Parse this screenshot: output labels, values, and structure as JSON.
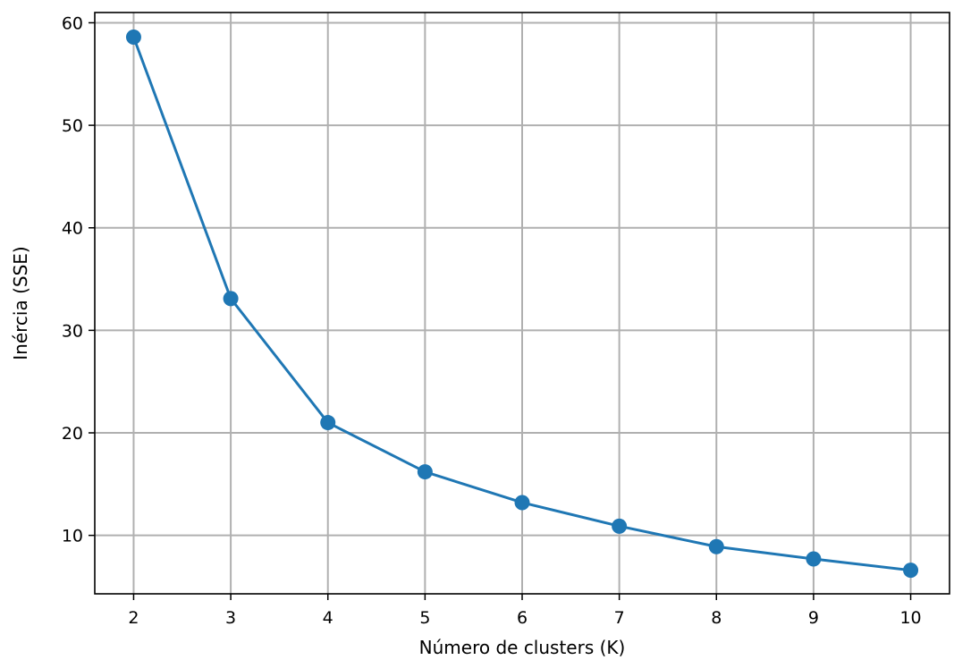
{
  "chart_data": {
    "type": "line",
    "title": "",
    "xlabel": "Número de clusters (K)",
    "ylabel": "Inércia (SSE)",
    "x": [
      2,
      3,
      4,
      5,
      6,
      7,
      8,
      9,
      10
    ],
    "series": [
      {
        "values": [
          58.6,
          33.1,
          21.0,
          16.2,
          13.2,
          10.9,
          8.9,
          7.7,
          6.6
        ],
        "color": "#1f77b4",
        "marker": "circle"
      }
    ],
    "xlim": [
      1.6,
      10.4
    ],
    "ylim": [
      4.3,
      61.0
    ],
    "xticks": [
      "2",
      "3",
      "4",
      "5",
      "6",
      "7",
      "8",
      "9",
      "10"
    ],
    "yticks": [
      "10",
      "20",
      "30",
      "40",
      "50",
      "60"
    ],
    "ytick_values": [
      10,
      20,
      30,
      40,
      50,
      60
    ],
    "grid": true,
    "legend": "none"
  }
}
